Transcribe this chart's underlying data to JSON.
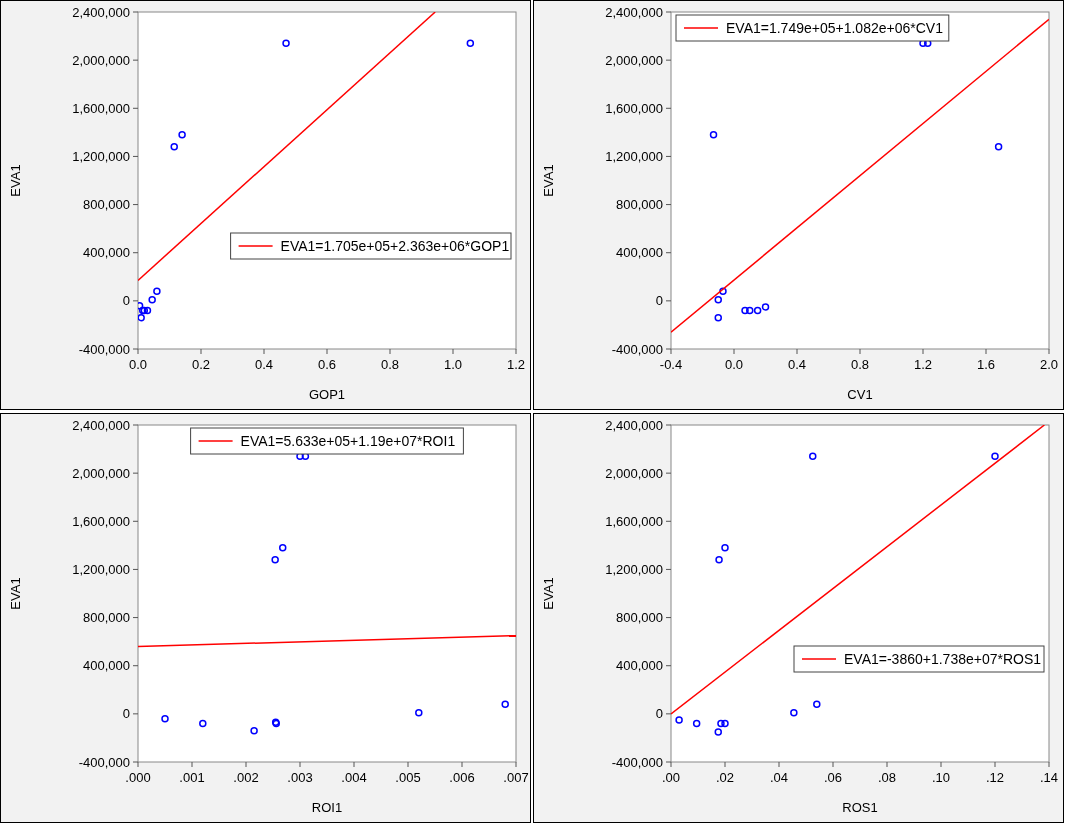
{
  "chart_data": [
    {
      "type": "scatter",
      "xlabel": "GOP1",
      "ylabel": "EVA1",
      "xlim": [
        0,
        1.2
      ],
      "ylim": [
        -400000,
        2400000
      ],
      "marker": "circle",
      "grid": false,
      "legend": "bottom right",
      "xticks": [
        {
          "value": 0,
          "label": "0.0"
        },
        {
          "value": 0.2,
          "label": "0.2"
        },
        {
          "value": 0.4,
          "label": "0.4"
        },
        {
          "value": 0.6,
          "label": "0.6"
        },
        {
          "value": 0.8,
          "label": "0.8"
        },
        {
          "value": 1,
          "label": "1.0"
        },
        {
          "value": 1.2,
          "label": "1.2"
        }
      ],
      "yticks": [
        {
          "value": -400000,
          "label": "-400,000"
        },
        {
          "value": 0,
          "label": "0"
        },
        {
          "value": 400000,
          "label": "400,000"
        },
        {
          "value": 800000,
          "label": "800,000"
        },
        {
          "value": 1200000,
          "label": "1,200,000"
        },
        {
          "value": 1600000,
          "label": "1,600,000"
        },
        {
          "value": 2000000,
          "label": "2,000,000"
        },
        {
          "value": 2400000,
          "label": "2,400,000"
        }
      ],
      "series": [
        {
          "color": "#0000ff",
          "x": [
            0.005,
            0.01,
            0.015,
            0.02,
            0.03,
            0.045,
            0.06,
            0.115,
            0.14,
            0.47,
            1.055
          ],
          "values": [
            -40000,
            -140000,
            -80000,
            -80000,
            -80000,
            10000,
            80000,
            1280000,
            1380000,
            2140000,
            2140000
          ]
        },
        {
          "type": "line",
          "marker": "none",
          "name": "EVA1=1.705e+05+2.363e+06*GOP1",
          "color": "#ff0000",
          "x": [
            0,
            0.9435
          ],
          "values": [
            170000,
            2400000
          ]
        }
      ]
    },
    {
      "type": "scatter",
      "xlabel": "CV1",
      "ylabel": "EVA1",
      "xlim": [
        -0.4,
        2.0
      ],
      "ylim": [
        -400000,
        2400000
      ],
      "marker": "circle",
      "grid": false,
      "legend": "top left",
      "xticks": [
        {
          "value": -0.4,
          "label": "-0.4"
        },
        {
          "value": 0,
          "label": "0.0"
        },
        {
          "value": 0.4,
          "label": "0.4"
        },
        {
          "value": 0.8,
          "label": "0.8"
        },
        {
          "value": 1.2,
          "label": "1.2"
        },
        {
          "value": 1.6,
          "label": "1.6"
        },
        {
          "value": 2,
          "label": "2.0"
        }
      ],
      "yticks": [
        {
          "value": -400000,
          "label": "-400,000"
        },
        {
          "value": 0,
          "label": "0"
        },
        {
          "value": 400000,
          "label": "400,000"
        },
        {
          "value": 800000,
          "label": "800,000"
        },
        {
          "value": 1200000,
          "label": "1,200,000"
        },
        {
          "value": 1600000,
          "label": "1,600,000"
        },
        {
          "value": 2000000,
          "label": "2,000,000"
        },
        {
          "value": 2400000,
          "label": "2,400,000"
        }
      ],
      "series": [
        {
          "color": "#0000ff",
          "x": [
            -0.13,
            -0.1,
            -0.1,
            -0.07,
            0.07,
            0.1,
            0.15,
            0.2,
            1.2,
            1.23,
            1.68
          ],
          "values": [
            1380000,
            10000,
            -140000,
            80000,
            -80000,
            -80000,
            -80000,
            -50000,
            2140000,
            2140000,
            1280000
          ]
        },
        {
          "type": "line",
          "marker": "none",
          "name": "EVA1=1.749e+05+1.082e+06*CV1",
          "color": "#ff0000",
          "x": [
            -0.4,
            2.0
          ],
          "values": [
            -260000,
            2340000
          ]
        }
      ]
    },
    {
      "type": "scatter",
      "xlabel": "ROI1",
      "ylabel": "EVA1",
      "xlim": [
        0,
        0.007
      ],
      "ylim": [
        -400000,
        2400000
      ],
      "marker": "circle",
      "grid": false,
      "legend": "top",
      "xticks": [
        {
          "value": 0,
          "label": ".000"
        },
        {
          "value": 0.001,
          "label": ".001"
        },
        {
          "value": 0.002,
          "label": ".002"
        },
        {
          "value": 0.003,
          "label": ".003"
        },
        {
          "value": 0.004,
          "label": ".004"
        },
        {
          "value": 0.005,
          "label": ".005"
        },
        {
          "value": 0.006,
          "label": ".006"
        },
        {
          "value": 0.007,
          "label": ".007"
        }
      ],
      "yticks": [
        {
          "value": -400000,
          "label": "-400,000"
        },
        {
          "value": 0,
          "label": "0"
        },
        {
          "value": 400000,
          "label": "400,000"
        },
        {
          "value": 800000,
          "label": "800,000"
        },
        {
          "value": 1200000,
          "label": "1,200,000"
        },
        {
          "value": 1600000,
          "label": "1,600,000"
        },
        {
          "value": 2000000,
          "label": "2,000,000"
        },
        {
          "value": 2400000,
          "label": "2,400,000"
        }
      ],
      "series": [
        {
          "color": "#0000ff",
          "x": [
            0.0005,
            0.0012,
            0.00215,
            0.00255,
            0.00256,
            0.0052,
            0.0068,
            0.00254,
            0.00268,
            0.003,
            0.0031
          ],
          "values": [
            -40000,
            -80000,
            -140000,
            -70000,
            -80000,
            10000,
            80000,
            1280000,
            1380000,
            2140000,
            2140000
          ]
        },
        {
          "type": "line",
          "marker": "none",
          "name": "EVA1=5.633e+05+1.19e+07*ROI1",
          "color": "#ff0000",
          "x": [
            0,
            0.007
          ],
          "values": [
            560000,
            650000
          ]
        }
      ]
    },
    {
      "type": "scatter",
      "xlabel": "ROS1",
      "ylabel": "EVA1",
      "xlim": [
        0,
        0.14
      ],
      "ylim": [
        -400000,
        2400000
      ],
      "marker": "circle",
      "grid": false,
      "legend": "bottom right",
      "xticks": [
        {
          "value": 0,
          "label": ".00"
        },
        {
          "value": 0.02,
          "label": ".02"
        },
        {
          "value": 0.04,
          "label": ".04"
        },
        {
          "value": 0.06,
          "label": ".06"
        },
        {
          "value": 0.08,
          "label": ".08"
        },
        {
          "value": 0.1,
          "label": ".10"
        },
        {
          "value": 0.12,
          "label": ".12"
        },
        {
          "value": 0.14,
          "label": ".14"
        }
      ],
      "yticks": [
        {
          "value": -400000,
          "label": "-400,000"
        },
        {
          "value": 0,
          "label": "0"
        },
        {
          "value": 400000,
          "label": "400,000"
        },
        {
          "value": 800000,
          "label": "800,000"
        },
        {
          "value": 1200000,
          "label": "1,200,000"
        },
        {
          "value": 1600000,
          "label": "1,600,000"
        },
        {
          "value": 2000000,
          "label": "2,000,000"
        },
        {
          "value": 2400000,
          "label": "2,400,000"
        }
      ],
      "series": [
        {
          "color": "#0000ff",
          "x": [
            0.003,
            0.0095,
            0.0175,
            0.0185,
            0.02,
            0.0455,
            0.054,
            0.0178,
            0.02,
            0.0525,
            0.12
          ],
          "values": [
            -50000,
            -80000,
            -150000,
            -80000,
            -80000,
            10000,
            80000,
            1280000,
            1380000,
            2140000,
            2140000
          ]
        },
        {
          "type": "line",
          "marker": "none",
          "name": "EVA1=-3860+1.738e+07*ROS1",
          "color": "#ff0000",
          "x": [
            0,
            0.1383
          ],
          "values": [
            0,
            2400000
          ]
        }
      ]
    }
  ]
}
